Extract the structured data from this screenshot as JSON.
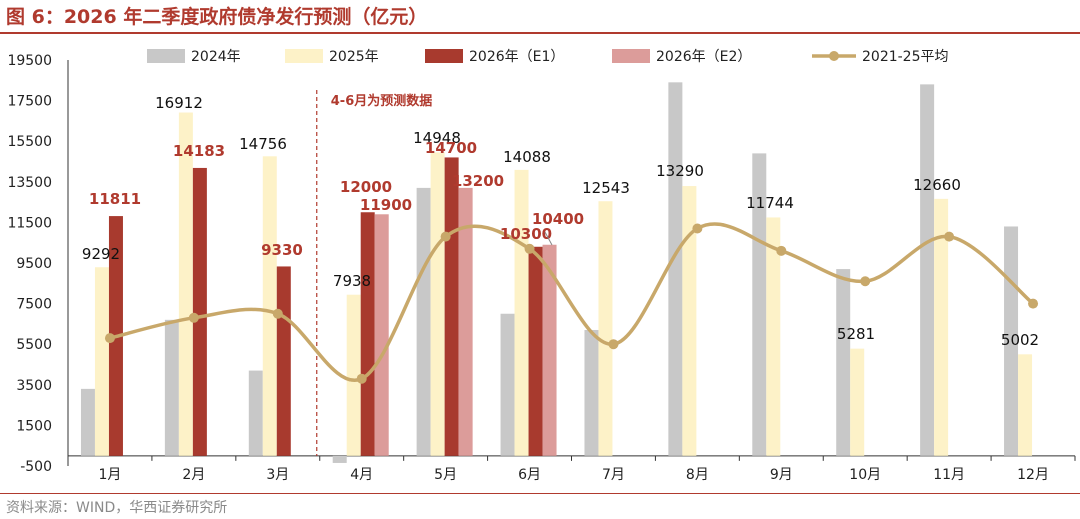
{
  "title": "图 6：2026 年二季度政府债净发行预测（亿元）",
  "source": "资料来源：WIND，华西证券研究所",
  "annotation": "4-6月为预测数据",
  "colors": {
    "s2024": "#c8c8c8",
    "s2025": "#fdf2c8",
    "e1": "#a83a2e",
    "e2": "#dc9c9a",
    "avg": "#c8a86a",
    "accent": "#b03a2e"
  },
  "chart_data": {
    "type": "bar",
    "categories": [
      "1月",
      "2月",
      "3月",
      "4月",
      "5月",
      "6月",
      "7月",
      "8月",
      "9月",
      "10月",
      "11月",
      "12月"
    ],
    "ylim": [
      -500,
      19500
    ],
    "yticks": [
      -500,
      1500,
      3500,
      5500,
      7500,
      9500,
      11500,
      13500,
      15500,
      17500,
      19500
    ],
    "legend_position": "top",
    "series": [
      {
        "name": "2024年",
        "type": "bar",
        "values": [
          3300,
          6700,
          4200,
          -350,
          13200,
          7000,
          6200,
          18400,
          14900,
          9200,
          18300,
          11300
        ]
      },
      {
        "name": "2025年",
        "type": "bar",
        "values": [
          9292,
          16912,
          14756,
          7938,
          14948,
          14088,
          12543,
          13290,
          11744,
          5281,
          12660,
          5002
        ]
      },
      {
        "name": "2026年（E1）",
        "type": "bar",
        "values": [
          11811,
          14183,
          9330,
          12000,
          14700,
          10300,
          null,
          null,
          null,
          null,
          null,
          null
        ]
      },
      {
        "name": "2026年（E2）",
        "type": "bar",
        "values": [
          null,
          null,
          null,
          11900,
          13200,
          10400,
          null,
          null,
          null,
          null,
          null,
          null
        ]
      },
      {
        "name": "2021-25平均",
        "type": "line",
        "values": [
          5800,
          6800,
          7000,
          3800,
          10800,
          10200,
          5500,
          11200,
          10100,
          8600,
          10800,
          7500
        ]
      }
    ]
  }
}
